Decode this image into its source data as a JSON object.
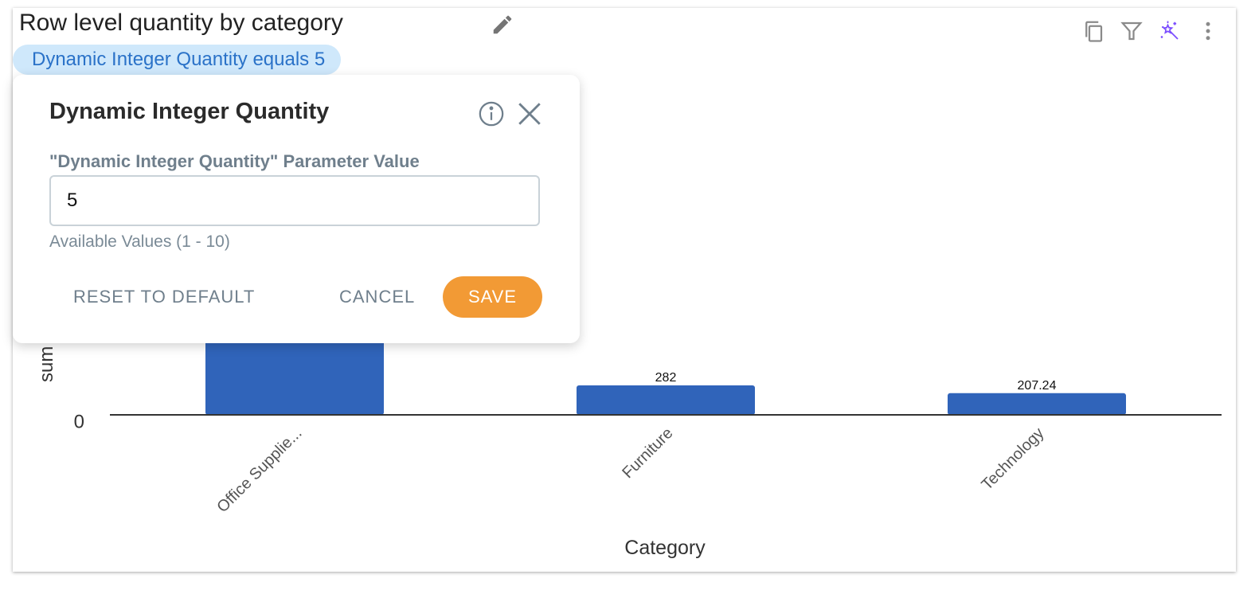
{
  "widget": {
    "title": "Row level quantity by category",
    "filter_chip": "Dynamic Integer Quantity equals 5",
    "toolbar_icons": [
      "copy-icon",
      "filter-icon",
      "magic-wand-icon",
      "more-vertical-icon"
    ],
    "accent_color": "#7b4dff"
  },
  "popup": {
    "title": "Dynamic Integer Quantity",
    "field_label": "\"Dynamic Integer Quantity\" Parameter Value",
    "field_value": "5",
    "hint": "Available Values (1 - 10)",
    "reset_label": "RESET TO DEFAULT",
    "cancel_label": "CANCEL",
    "save_label": "SAVE",
    "save_color": "#f29a35"
  },
  "chart_data": {
    "type": "bar",
    "categories": [
      "Office Supplie...",
      "Furniture",
      "Technology"
    ],
    "values": [
      null,
      282,
      207.24
    ],
    "data_labels": [
      "",
      "282",
      "207.24"
    ],
    "xlabel": "Category",
    "ylabel": "sum",
    "yticks": [
      "0"
    ],
    "bar_color": "#3064ba"
  }
}
